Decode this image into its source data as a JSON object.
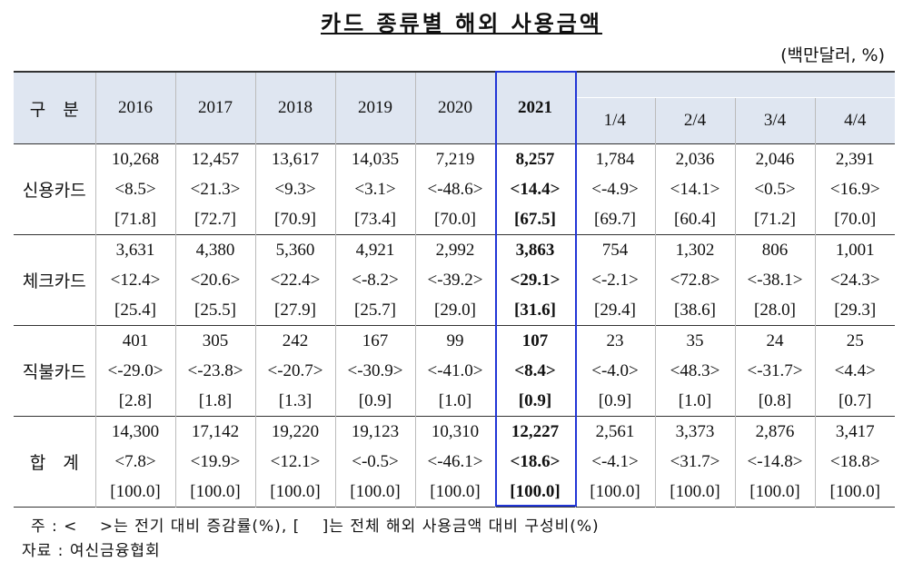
{
  "header": {
    "title": "카드 종류별 해외 사용금액",
    "unit": "(백만달러, %)"
  },
  "table": {
    "corner": "구　분",
    "columns": [
      "2016",
      "2017",
      "2018",
      "2019",
      "2020",
      "2021",
      "1/4",
      "2/4",
      "3/4",
      "4/4"
    ],
    "rows": [
      {
        "label": "신용카드",
        "cells": [
          [
            "10,268",
            "<8.5>",
            "[71.8]"
          ],
          [
            "12,457",
            "<21.3>",
            "[72.7]"
          ],
          [
            "13,617",
            "<9.3>",
            "[70.9]"
          ],
          [
            "14,035",
            "<3.1>",
            "[73.4]"
          ],
          [
            "7,219",
            "<-48.6>",
            "[70.0]"
          ],
          [
            "8,257",
            "<14.4>",
            "[67.5]"
          ],
          [
            "1,784",
            "<-4.9>",
            "[69.7]"
          ],
          [
            "2,036",
            "<14.1>",
            "[60.4]"
          ],
          [
            "2,046",
            "<0.5>",
            "[71.2]"
          ],
          [
            "2,391",
            "<16.9>",
            "[70.0]"
          ]
        ]
      },
      {
        "label": "체크카드",
        "cells": [
          [
            "3,631",
            "<12.4>",
            "[25.4]"
          ],
          [
            "4,380",
            "<20.6>",
            "[25.5]"
          ],
          [
            "5,360",
            "<22.4>",
            "[27.9]"
          ],
          [
            "4,921",
            "<-8.2>",
            "[25.7]"
          ],
          [
            "2,992",
            "<-39.2>",
            "[29.0]"
          ],
          [
            "3,863",
            "<29.1>",
            "[31.6]"
          ],
          [
            "754",
            "<-2.1>",
            "[29.4]"
          ],
          [
            "1,302",
            "<72.8>",
            "[38.6]"
          ],
          [
            "806",
            "<-38.1>",
            "[28.0]"
          ],
          [
            "1,001",
            "<24.3>",
            "[29.3]"
          ]
        ]
      },
      {
        "label": "직불카드",
        "cells": [
          [
            "401",
            "<-29.0>",
            "[2.8]"
          ],
          [
            "305",
            "<-23.8>",
            "[1.8]"
          ],
          [
            "242",
            "<-20.7>",
            "[1.3]"
          ],
          [
            "167",
            "<-30.9>",
            "[0.9]"
          ],
          [
            "99",
            "<-41.0>",
            "[1.0]"
          ],
          [
            "107",
            "<8.4>",
            "[0.9]"
          ],
          [
            "23",
            "<-4.0>",
            "[0.9]"
          ],
          [
            "35",
            "<48.3>",
            "[1.0]"
          ],
          [
            "24",
            "<-31.7>",
            "[0.8]"
          ],
          [
            "25",
            "<4.4>",
            "[0.7]"
          ]
        ]
      },
      {
        "label": "합　계",
        "cells": [
          [
            "14,300",
            "<7.8>",
            "[100.0]"
          ],
          [
            "17,142",
            "<19.9>",
            "[100.0]"
          ],
          [
            "19,220",
            "<12.1>",
            "[100.0]"
          ],
          [
            "19,123",
            "<-0.5>",
            "[100.0]"
          ],
          [
            "10,310",
            "<-46.1>",
            "[100.0]"
          ],
          [
            "12,227",
            "<18.6>",
            "[100.0]"
          ],
          [
            "2,561",
            "<-4.1>",
            "[100.0]"
          ],
          [
            "3,373",
            "<31.7>",
            "[100.0]"
          ],
          [
            "2,876",
            "<-14.8>",
            "[100.0]"
          ],
          [
            "3,417",
            "<18.8>",
            "[100.0]"
          ]
        ]
      }
    ]
  },
  "notes": [
    "주 : <　 >는 전기 대비 증감률(%), [　 ]는 전체 해외 사용금액 대비 구성비(%)",
    "자료 : 여신금융협회"
  ]
}
